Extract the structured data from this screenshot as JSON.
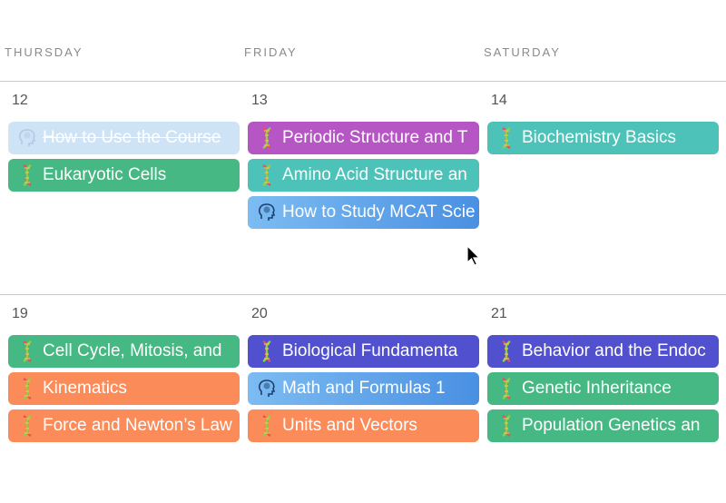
{
  "days": [
    "THURSDAY",
    "FRIDAY",
    "SATURDAY"
  ],
  "weeks": [
    {
      "dates": [
        "12",
        "13",
        "14"
      ],
      "events": [
        [
          {
            "title": "How to Use the Course",
            "icon": "brain-icon",
            "color": "#cfe3f7",
            "done": true
          },
          {
            "title": "Eukaryotic Cells",
            "icon": "dna-icon",
            "color": "#45b883"
          }
        ],
        [
          {
            "title": "Periodic Structure and T",
            "icon": "dna-icon",
            "color": "#b655c4"
          },
          {
            "title": "Amino Acid Structure an",
            "icon": "dna-icon",
            "color": "#4cc2b8"
          },
          {
            "title": "How to Study MCAT Scie",
            "icon": "brain-icon",
            "color": "#5fa6ea"
          }
        ],
        [
          {
            "title": "Biochemistry Basics",
            "icon": "dna-icon",
            "color": "#4cc2b8"
          }
        ]
      ]
    },
    {
      "dates": [
        "19",
        "20",
        "21"
      ],
      "events": [
        [
          {
            "title": "Cell Cycle, Mitosis, and",
            "icon": "dna-icon",
            "color": "#45b883"
          },
          {
            "title": "Kinematics",
            "icon": "dna-icon",
            "color": "#fb8c5a"
          },
          {
            "title": "Force and Newton’s Law",
            "icon": "dna-icon",
            "color": "#fb8c5a"
          }
        ],
        [
          {
            "title": "Biological Fundamenta",
            "icon": "dna-icon",
            "color": "#5150cf"
          },
          {
            "title": "Math and Formulas 1",
            "icon": "brain-icon",
            "color": "#5fa6ea"
          },
          {
            "title": "Units and Vectors",
            "icon": "dna-icon",
            "color": "#fb8c5a"
          }
        ],
        [
          {
            "title": "Behavior and the Endoc",
            "icon": "dna-icon",
            "color": "#5150cf"
          },
          {
            "title": "Genetic Inheritance",
            "icon": "dna-icon",
            "color": "#45b883"
          },
          {
            "title": "Population Genetics an",
            "icon": "dna-icon",
            "color": "#45b883"
          }
        ]
      ]
    }
  ]
}
